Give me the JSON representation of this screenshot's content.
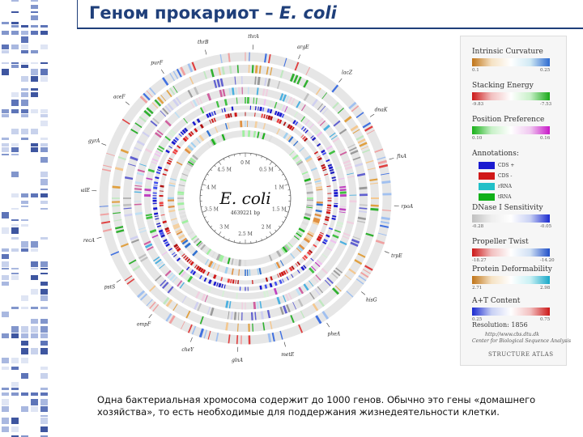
{
  "slide": {
    "title_prefix": "Геном прокариот – ",
    "title_italic": "E. coli",
    "caption": "Одна бактериальная хромосома содержит до 1000 генов. Обычно это гены «домашнего хозяйства», то есть необходимые для поддержания жизнедеятельности клетки."
  },
  "atlas": {
    "organism": "E. coli",
    "organism_sub": "4639221 bp",
    "inner_scale": [
      "0 M",
      "0.5 M",
      "1 M",
      "1.5 M",
      "2 M",
      "2.5 M",
      "3 M",
      "3.5 M",
      "4 M",
      "4.5 M"
    ],
    "outer_gene_labels": [
      "thrA",
      "argE",
      "lacZ",
      "dnaK",
      "fixA",
      "rpoA",
      "trpE",
      "hisG",
      "pheA",
      "metE",
      "glnA",
      "cheY",
      "ompF",
      "pstS",
      "recA",
      "malE",
      "gyrA",
      "aceF",
      "purF",
      "thrB"
    ],
    "colors": {
      "accent_blue": "#1f3f7a",
      "cds_plus": "#1a1ad0",
      "cds_minus": "#d01818",
      "trna": "#20c0c8",
      "rrna": "#10b018"
    }
  },
  "legend": {
    "curvature": {
      "label": "Intrinsic Curvature",
      "min": "0.1",
      "max": "0.25"
    },
    "stacking": {
      "label": "Stacking Energy",
      "min": "-9.83",
      "max": "-7.53"
    },
    "position": {
      "label": "Position Preference",
      "min": "0.10",
      "max": "0.16"
    },
    "annotations": {
      "label": "Annotations:",
      "items": [
        "CDS +",
        "CDS -",
        "rRNA",
        "tRNA"
      ]
    },
    "dnase": {
      "label": "DNase I Sensitivity",
      "min": "-0.28",
      "max": "-0.05"
    },
    "twist": {
      "label": "Propeller Twist",
      "min": "-18.27",
      "max": "-14.20"
    },
    "deform": {
      "label": "Protein Deformability",
      "min": "2.71",
      "max": "2.98"
    },
    "at": {
      "label": "A+T Content",
      "min": "0.25",
      "max": "0.75"
    },
    "resolution": "Resolution: 1856",
    "credit_url": "http://www.cbs.dtu.dk",
    "credit_org": "Center for Biological Sequence Analysis",
    "footer": "STRUCTURE ATLAS"
  }
}
